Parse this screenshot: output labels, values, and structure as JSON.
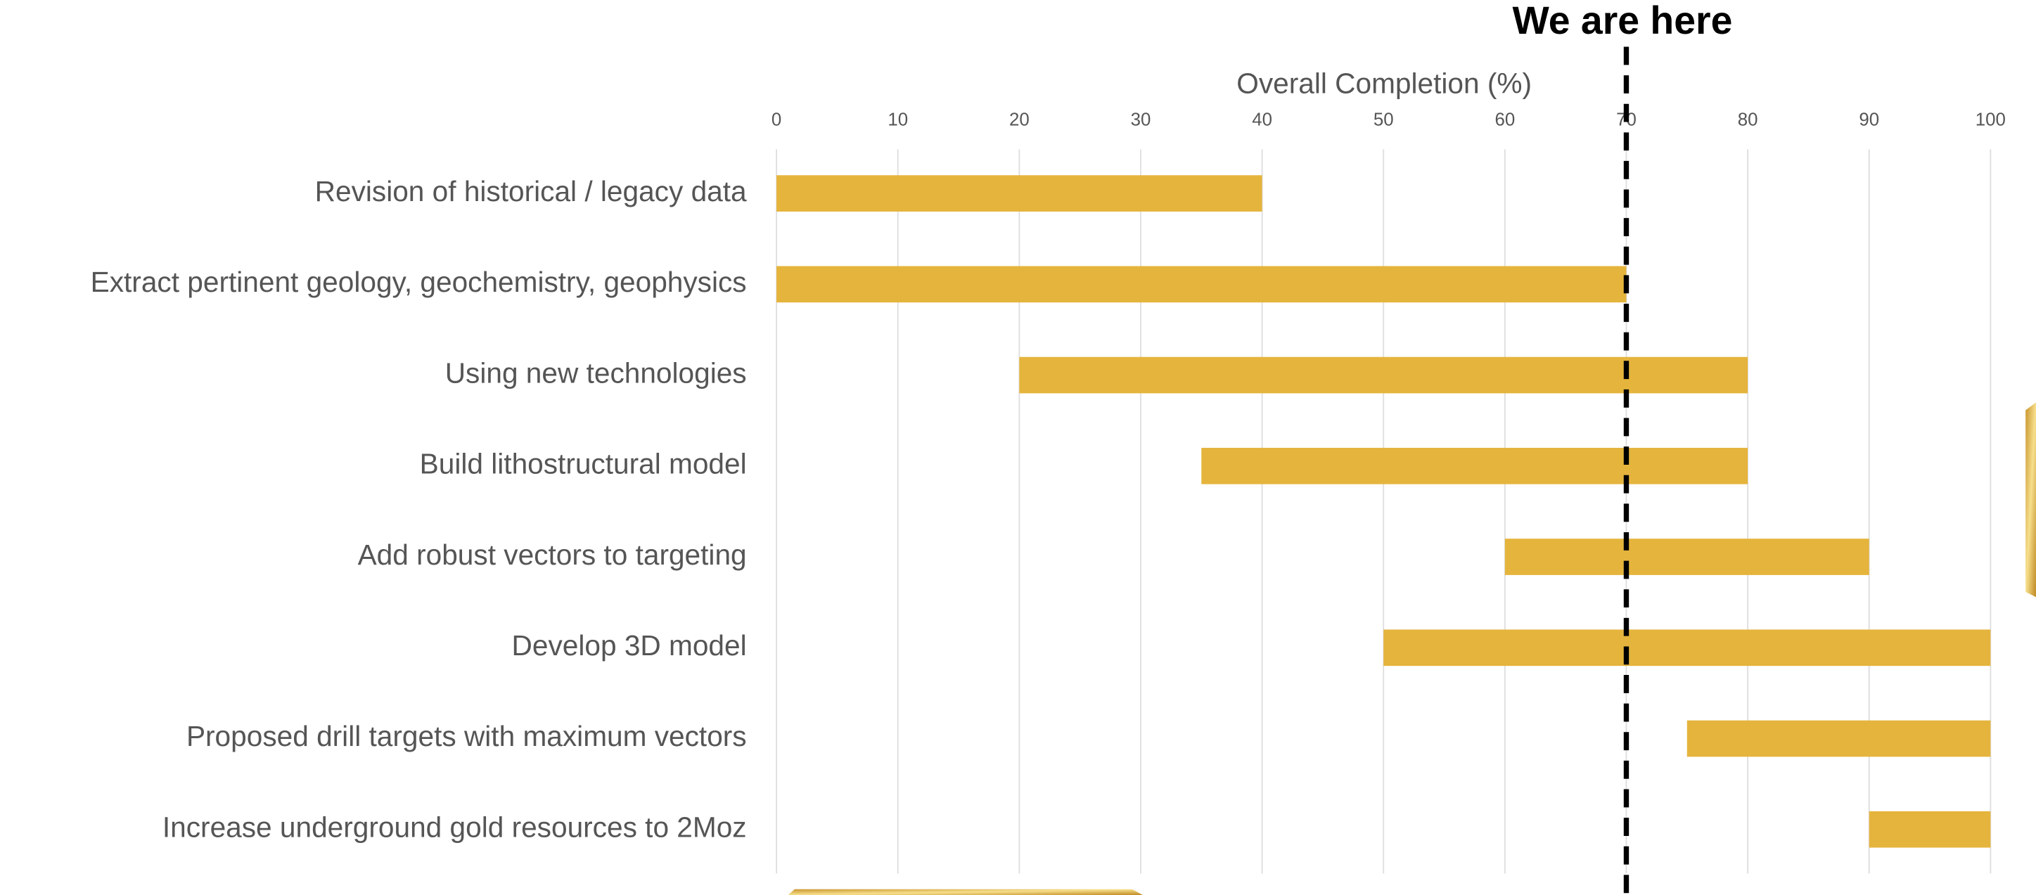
{
  "chart_data": {
    "type": "floating-bar",
    "x_label": "Overall Completion (%)",
    "categories": [
      "Revision of historical / legacy data",
      "Extract pertinent geology, geochemistry, geophysics",
      "Using new technologies",
      "Build lithostructural model",
      "Add robust vectors to targeting",
      "Develop 3D model",
      "Proposed drill targets with maximum vectors",
      "Increase underground gold resources to 2Moz"
    ],
    "starts": [
      0,
      0,
      20,
      35,
      60,
      50,
      75,
      90
    ],
    "ends": [
      40,
      70,
      80,
      80,
      90,
      100,
      100,
      100
    ],
    "color": "#e5b43c",
    "xlim": [
      0,
      100
    ],
    "xticks": [
      0,
      10,
      20,
      30,
      40,
      50,
      60,
      70,
      80,
      90,
      100
    ],
    "grid": true,
    "annotation": {
      "text": "We are here",
      "x": 70
    }
  }
}
